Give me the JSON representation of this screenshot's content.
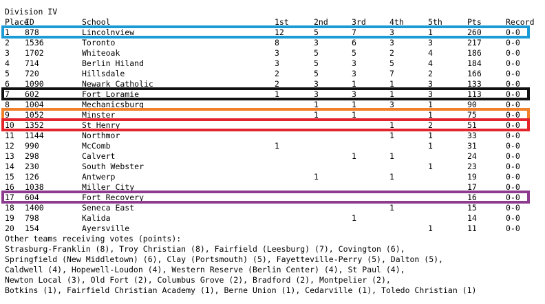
{
  "division": "Division IV",
  "columns": {
    "place": "Place",
    "id": "ID",
    "school": "School",
    "first": "1st",
    "second": "2nd",
    "third": "3rd",
    "fourth": "4th",
    "fifth": "5th",
    "pts": "Pts",
    "record": "Record"
  },
  "rows": [
    {
      "place": "1",
      "id": "878",
      "school": "Lincolnview",
      "first": "12",
      "second": "5",
      "third": "7",
      "fourth": "3",
      "fifth": "1",
      "pts": "260",
      "record": "0-0"
    },
    {
      "place": "2",
      "id": "1536",
      "school": "Toronto",
      "first": "8",
      "second": "3",
      "third": "6",
      "fourth": "3",
      "fifth": "3",
      "pts": "217",
      "record": "0-0"
    },
    {
      "place": "3",
      "id": "1702",
      "school": "Whiteoak",
      "first": "3",
      "second": "5",
      "third": "5",
      "fourth": "2",
      "fifth": "4",
      "pts": "186",
      "record": "0-0"
    },
    {
      "place": "4",
      "id": "714",
      "school": "Berlin Hiland",
      "first": "3",
      "second": "5",
      "third": "3",
      "fourth": "5",
      "fifth": "4",
      "pts": "184",
      "record": "0-0"
    },
    {
      "place": "5",
      "id": "720",
      "school": "Hillsdale",
      "first": "2",
      "second": "5",
      "third": "3",
      "fourth": "7",
      "fifth": "2",
      "pts": "166",
      "record": "0-0"
    },
    {
      "place": "6",
      "id": "1090",
      "school": "Newark Catholic",
      "first": "2",
      "second": "3",
      "third": "1",
      "fourth": "1",
      "fifth": "3",
      "pts": "133",
      "record": "0-0"
    },
    {
      "place": "7",
      "id": "602",
      "school": "Fort Loramie",
      "first": "1",
      "second": "3",
      "third": "3",
      "fourth": "1",
      "fifth": "3",
      "pts": "113",
      "record": "0-0"
    },
    {
      "place": "8",
      "id": "1004",
      "school": "Mechanicsburg",
      "first": "",
      "second": "1",
      "third": "1",
      "fourth": "3",
      "fifth": "1",
      "pts": "90",
      "record": "0-0"
    },
    {
      "place": "9",
      "id": "1052",
      "school": "Minster",
      "first": "",
      "second": "1",
      "third": "1",
      "fourth": "",
      "fifth": "1",
      "pts": "75",
      "record": "0-0"
    },
    {
      "place": "10",
      "id": "1352",
      "school": "St Henry",
      "first": "",
      "second": "",
      "third": "",
      "fourth": "1",
      "fifth": "2",
      "pts": "51",
      "record": "0-0"
    },
    {
      "place": "11",
      "id": "1144",
      "school": "Northmor",
      "first": "",
      "second": "",
      "third": "",
      "fourth": "1",
      "fifth": "1",
      "pts": "33",
      "record": "0-0"
    },
    {
      "place": "12",
      "id": "990",
      "school": "McComb",
      "first": "1",
      "second": "",
      "third": "",
      "fourth": "",
      "fifth": "1",
      "pts": "31",
      "record": "0-0"
    },
    {
      "place": "13",
      "id": "298",
      "school": "Calvert",
      "first": "",
      "second": "",
      "third": "1",
      "fourth": "1",
      "fifth": "",
      "pts": "24",
      "record": "0-0"
    },
    {
      "place": "14",
      "id": "230",
      "school": "South Webster",
      "first": "",
      "second": "",
      "third": "",
      "fourth": "",
      "fifth": "1",
      "pts": "23",
      "record": "0-0"
    },
    {
      "place": "15",
      "id": "126",
      "school": "Antwerp",
      "first": "",
      "second": "1",
      "third": "",
      "fourth": "1",
      "fifth": "",
      "pts": "19",
      "record": "0-0"
    },
    {
      "place": "16",
      "id": "1038",
      "school": "Miller City",
      "first": "",
      "second": "",
      "third": "",
      "fourth": "",
      "fifth": "",
      "pts": "17",
      "record": "0-0"
    },
    {
      "place": "17",
      "id": "604",
      "school": "Fort Recovery",
      "first": "",
      "second": "",
      "third": "",
      "fourth": "",
      "fifth": "",
      "pts": "16",
      "record": "0-0"
    },
    {
      "place": "18",
      "id": "1400",
      "school": "Seneca East",
      "first": "",
      "second": "",
      "third": "",
      "fourth": "1",
      "fifth": "",
      "pts": "15",
      "record": "0-0"
    },
    {
      "place": "19",
      "id": "798",
      "school": "Kalida",
      "first": "",
      "second": "",
      "third": "1",
      "fourth": "",
      "fifth": "",
      "pts": "14",
      "record": "0-0"
    },
    {
      "place": "20",
      "id": "154",
      "school": "Ayersville",
      "first": "",
      "second": "",
      "third": "",
      "fourth": "",
      "fifth": "1",
      "pts": "11",
      "record": "0-0"
    }
  ],
  "highlights": [
    {
      "place": "1",
      "color": "#1b9bd6"
    },
    {
      "place": "7",
      "color": "#111111"
    },
    {
      "place": "9",
      "color": "#f0812a"
    },
    {
      "place": "10",
      "color": "#e3242b"
    },
    {
      "place": "17",
      "color": "#8d3b8f"
    }
  ],
  "others": {
    "heading": "Other teams receiving votes (points):",
    "lines": [
      "Strasburg-Franklin (8), Troy Christian (8), Fairfield (Leesburg) (7), Covington (6),",
      "Springfield (New Middletown) (6), Clay (Portsmouth) (5), Fayetteville-Perry (5), Dalton (5),",
      "Caldwell (4), Hopewell-Loudon (4), Western Reserve (Berlin Center) (4), St Paul (4),",
      "Newton Local (3), Old Fort (2), Columbus Grove (2), Bradford (2), Montpelier (2),",
      "Botkins (1), Fairfield Christian Academy (1), Berne Union (1), Cedarville (1), Toledo Christian (1)"
    ]
  }
}
